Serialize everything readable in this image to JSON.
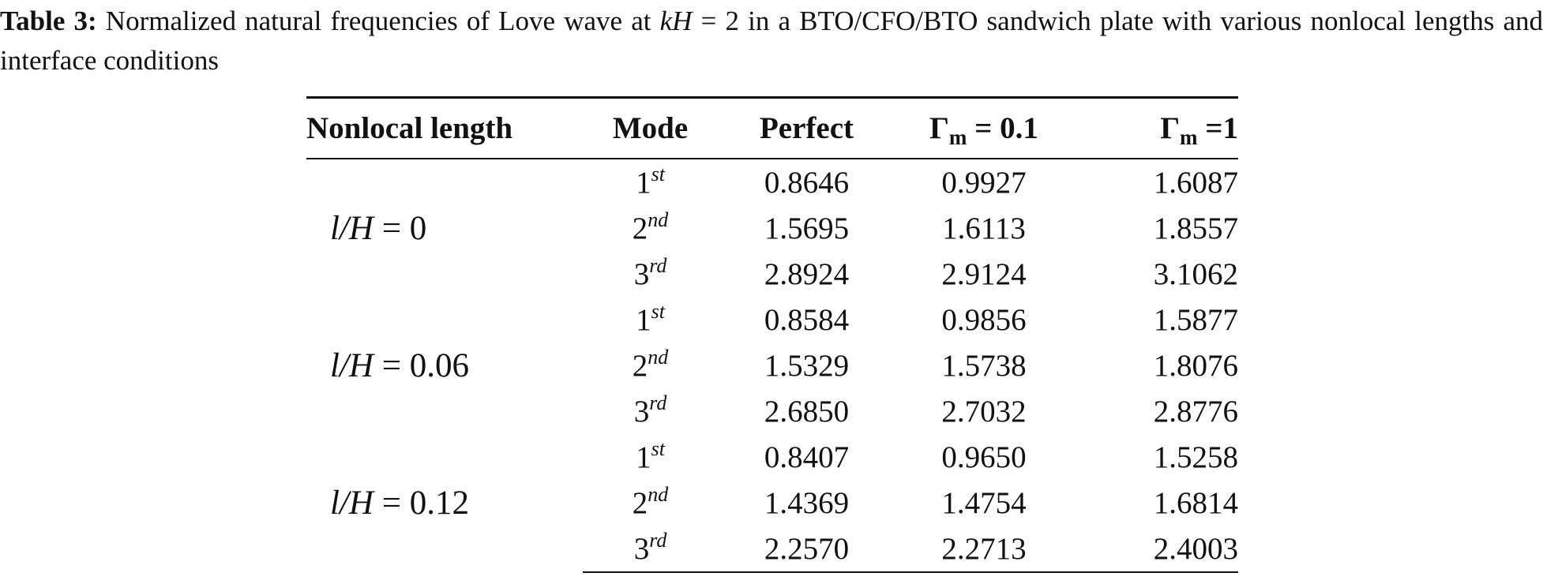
{
  "caption": {
    "label": "Table 3:",
    "text_before": " Normalized natural frequencies of Love wave at ",
    "kh_k": "kH",
    "kh_rest": " = 2 in a BTO/CFO/BTO sandwich plate with various nonlocal lengths and interface conditions"
  },
  "table": {
    "headers": {
      "nonlocal": "Nonlocal length",
      "mode": "Mode",
      "perfect": "Perfect",
      "gamma_symbol": "Γ",
      "gamma_sub": "m",
      "g01_rest": " = 0.1",
      "g1_rest": " =1"
    },
    "groups": [
      {
        "lH": "l/H",
        "value": " = 0",
        "rows": [
          {
            "mode_num": "1",
            "mode_sup": "st",
            "perfect": "0.8646",
            "g01": "0.9927",
            "g1": "1.6087"
          },
          {
            "mode_num": "2",
            "mode_sup": "nd",
            "perfect": "1.5695",
            "g01": "1.6113",
            "g1": "1.8557"
          },
          {
            "mode_num": "3",
            "mode_sup": "rd",
            "perfect": "2.8924",
            "g01": "2.9124",
            "g1": "3.1062"
          }
        ]
      },
      {
        "lH": "l/H",
        "value": " = 0.06",
        "rows": [
          {
            "mode_num": "1",
            "mode_sup": "st",
            "perfect": "0.8584",
            "g01": "0.9856",
            "g1": "1.5877"
          },
          {
            "mode_num": "2",
            "mode_sup": "nd",
            "perfect": "1.5329",
            "g01": "1.5738",
            "g1": "1.8076"
          },
          {
            "mode_num": "3",
            "mode_sup": "rd",
            "perfect": "2.6850",
            "g01": "2.7032",
            "g1": "2.8776"
          }
        ]
      },
      {
        "lH": "l/H",
        "value": " = 0.12",
        "rows": [
          {
            "mode_num": "1",
            "mode_sup": "st",
            "perfect": "0.8407",
            "g01": "0.9650",
            "g1": "1.5258"
          },
          {
            "mode_num": "2",
            "mode_sup": "nd",
            "perfect": "1.4369",
            "g01": "1.4754",
            "g1": "1.6814"
          },
          {
            "mode_num": "3",
            "mode_sup": "rd",
            "perfect": "2.2570",
            "g01": "2.2713",
            "g1": "2.4003"
          }
        ]
      }
    ]
  }
}
